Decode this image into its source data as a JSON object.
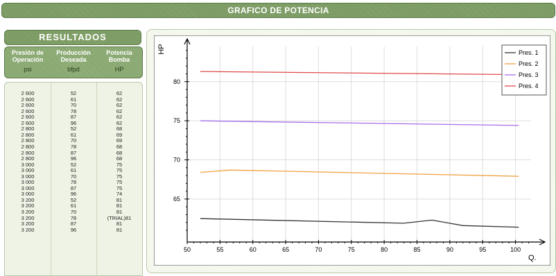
{
  "header": {
    "title": "GRAFICO DE POTENCIA"
  },
  "results": {
    "title": "RESULTADOS",
    "columns": [
      {
        "line1": "Presión de",
        "line2": "Operación",
        "unit": "psi"
      },
      {
        "line1": "Producción",
        "line2": "Deseada",
        "unit": "bfpd"
      },
      {
        "line1": "Potencia",
        "line2": "Bomba",
        "unit": "HP"
      }
    ],
    "rows": [
      [
        "2 600",
        "52",
        "62"
      ],
      [
        "2 600",
        "61",
        "62"
      ],
      [
        "2 600",
        "70",
        "62"
      ],
      [
        "2 600",
        "78",
        "62"
      ],
      [
        "2 600",
        "87",
        "62"
      ],
      [
        "2 600",
        "96",
        "62"
      ],
      [
        "2 800",
        "52",
        "68"
      ],
      [
        "2 800",
        "61",
        "69"
      ],
      [
        "2 800",
        "70",
        "69"
      ],
      [
        "2 800",
        "78",
        "68"
      ],
      [
        "2 800",
        "87",
        "68"
      ],
      [
        "2 800",
        "96",
        "68"
      ],
      [
        "3 000",
        "52",
        "75"
      ],
      [
        "3 000",
        "61",
        "75"
      ],
      [
        "3 000",
        "70",
        "75"
      ],
      [
        "3 000",
        "78",
        "75"
      ],
      [
        "3 000",
        "87",
        "75"
      ],
      [
        "3 000",
        "96",
        "74"
      ],
      [
        "3 200",
        "52",
        "81"
      ],
      [
        "3 200",
        "61",
        "81"
      ],
      [
        "3 200",
        "70",
        "81"
      ],
      [
        "3 200",
        "78",
        "(TRIAL)81"
      ],
      [
        "3 200",
        "87",
        "81"
      ],
      [
        "3 200",
        "96",
        "81"
      ]
    ]
  },
  "chart_data": {
    "type": "line",
    "xlabel": "Q.",
    "ylabel": "HP",
    "xlim": [
      50,
      103
    ],
    "ylim": [
      59.5,
      84.5
    ],
    "x_ticks": [
      50,
      55,
      60,
      65,
      70,
      75,
      80,
      85,
      90,
      95,
      100
    ],
    "y_ticks": [
      65,
      70,
      75,
      80
    ],
    "grid": true,
    "legend_placement": "top-right",
    "series": [
      {
        "name": "Pres. 1",
        "color": "#333333",
        "points": [
          [
            52,
            62.5
          ],
          [
            83,
            61.9
          ],
          [
            87.3,
            62.3
          ],
          [
            92,
            61.6
          ],
          [
            100.5,
            61.4
          ]
        ]
      },
      {
        "name": "Pres. 2",
        "color": "#f0a040",
        "points": [
          [
            52,
            68.4
          ],
          [
            56.5,
            68.7
          ],
          [
            100.5,
            67.9
          ]
        ]
      },
      {
        "name": "Pres. 3",
        "color": "#a56ee8",
        "points": [
          [
            52,
            75.0
          ],
          [
            100.5,
            74.4
          ]
        ]
      },
      {
        "name": "Pres. 4",
        "color": "#e04848",
        "points": [
          [
            52,
            81.3
          ],
          [
            100.5,
            80.9
          ]
        ]
      }
    ]
  }
}
